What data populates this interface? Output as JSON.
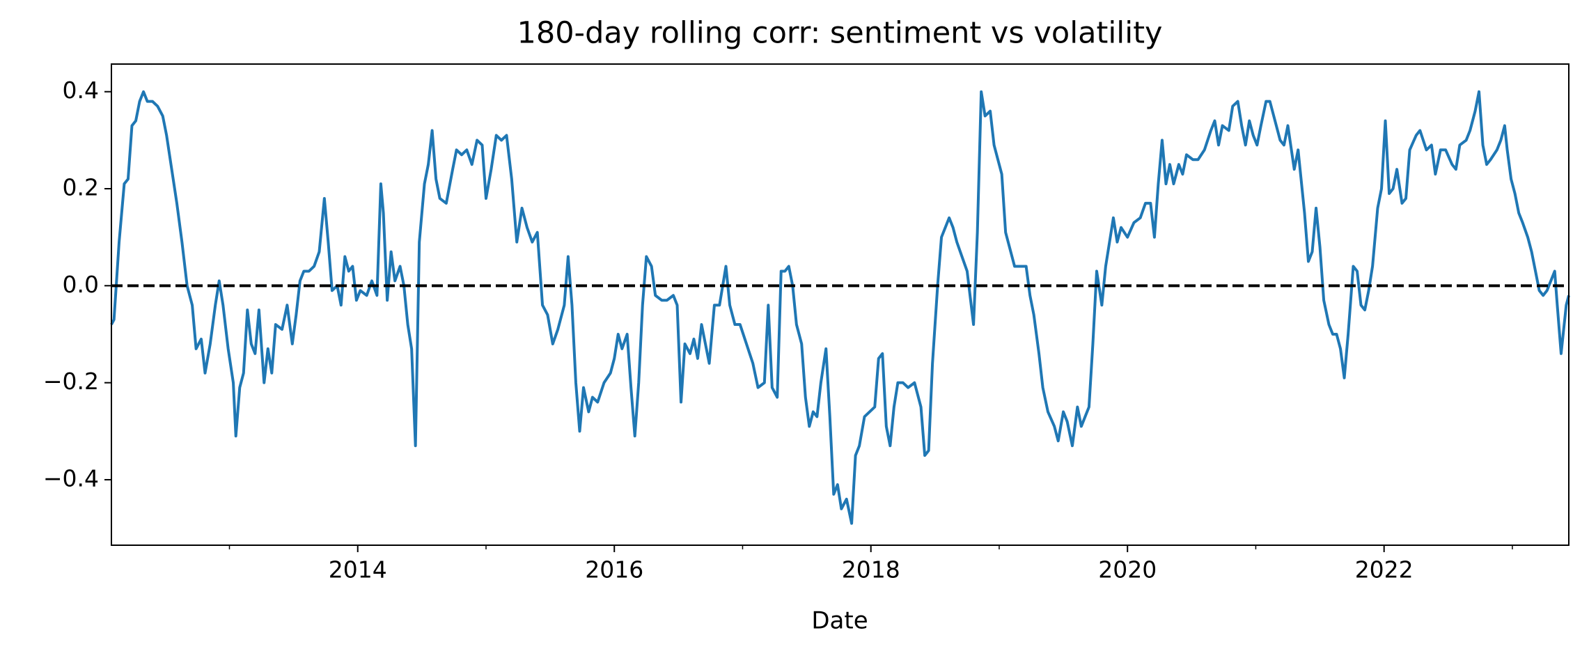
{
  "chart_data": {
    "type": "line",
    "title": "180-day rolling corr: sentiment vs volatility",
    "xlabel": "Date",
    "x": [
      2012.08,
      2012.1,
      2012.14,
      2012.18,
      2012.21,
      2012.24,
      2012.27,
      2012.3,
      2012.33,
      2012.36,
      2012.4,
      2012.44,
      2012.48,
      2012.51,
      2012.55,
      2012.59,
      2012.63,
      2012.67,
      2012.71,
      2012.74,
      2012.78,
      2012.81,
      2012.85,
      2012.89,
      2012.92,
      2012.95,
      2012.99,
      2013.03,
      2013.05,
      2013.08,
      2013.11,
      2013.14,
      2013.17,
      2013.2,
      2013.23,
      2013.27,
      2013.3,
      2013.33,
      2013.36,
      2013.41,
      2013.45,
      2013.49,
      2013.52,
      2013.55,
      2013.58,
      2013.62,
      2013.66,
      2013.7,
      2013.74,
      2013.77,
      2013.8,
      2013.84,
      2013.87,
      2013.9,
      2013.93,
      2013.96,
      2013.99,
      2014.02,
      2014.07,
      2014.11,
      2014.15,
      2014.18,
      2014.2,
      2014.23,
      2014.26,
      2014.29,
      2014.33,
      2014.36,
      2014.39,
      2014.42,
      2014.45,
      2014.48,
      2014.52,
      2014.55,
      2014.58,
      2014.61,
      2014.64,
      2014.69,
      2014.74,
      2014.77,
      2014.81,
      2014.85,
      2014.89,
      2014.93,
      2014.97,
      2015.0,
      2015.04,
      2015.08,
      2015.12,
      2015.16,
      2015.2,
      2015.24,
      2015.28,
      2015.32,
      2015.36,
      2015.4,
      2015.44,
      2015.48,
      2015.52,
      2015.56,
      2015.61,
      2015.64,
      2015.67,
      2015.7,
      2015.73,
      2015.76,
      2015.8,
      2015.83,
      2015.87,
      2015.92,
      2015.97,
      2016.0,
      2016.03,
      2016.06,
      2016.1,
      2016.13,
      2016.16,
      2016.19,
      2016.22,
      2016.25,
      2016.29,
      2016.32,
      2016.37,
      2016.41,
      2016.46,
      2016.49,
      2016.52,
      2016.55,
      2016.59,
      2016.62,
      2016.65,
      2016.68,
      2016.71,
      2016.74,
      2016.78,
      2016.82,
      2016.87,
      2016.9,
      2016.94,
      2016.98,
      2017.03,
      2017.08,
      2017.12,
      2017.17,
      2017.2,
      2017.23,
      2017.27,
      2017.3,
      2017.33,
      2017.36,
      2017.39,
      2017.42,
      2017.46,
      2017.49,
      2017.52,
      2017.55,
      2017.58,
      2017.61,
      2017.65,
      2017.68,
      2017.71,
      2017.74,
      2017.77,
      2017.81,
      2017.85,
      2017.88,
      2017.91,
      2017.95,
      2017.99,
      2018.03,
      2018.06,
      2018.09,
      2018.12,
      2018.15,
      2018.18,
      2018.21,
      2018.25,
      2018.29,
      2018.34,
      2018.39,
      2018.42,
      2018.45,
      2018.48,
      2018.52,
      2018.55,
      2018.58,
      2018.61,
      2018.64,
      2018.67,
      2018.71,
      2018.75,
      2018.8,
      2018.83,
      2018.86,
      2018.89,
      2018.93,
      2018.96,
      2018.99,
      2019.02,
      2019.05,
      2019.08,
      2019.12,
      2019.16,
      2019.21,
      2019.24,
      2019.27,
      2019.31,
      2019.34,
      2019.38,
      2019.43,
      2019.46,
      2019.5,
      2019.53,
      2019.57,
      2019.61,
      2019.64,
      2019.67,
      2019.7,
      2019.73,
      2019.76,
      2019.8,
      2019.83,
      2019.86,
      2019.89,
      2019.92,
      2019.95,
      2020.0,
      2020.05,
      2020.1,
      2020.14,
      2020.18,
      2020.21,
      2020.24,
      2020.27,
      2020.3,
      2020.33,
      2020.36,
      2020.4,
      2020.43,
      2020.46,
      2020.51,
      2020.55,
      2020.6,
      2020.65,
      2020.68,
      2020.71,
      2020.74,
      2020.79,
      2020.82,
      2020.86,
      2020.89,
      2020.92,
      2020.95,
      2020.98,
      2021.01,
      2021.04,
      2021.08,
      2021.11,
      2021.14,
      2021.19,
      2021.22,
      2021.25,
      2021.3,
      2021.33,
      2021.38,
      2021.41,
      2021.44,
      2021.47,
      2021.5,
      2021.53,
      2021.57,
      2021.6,
      2021.63,
      2021.66,
      2021.69,
      2021.72,
      2021.76,
      2021.79,
      2021.82,
      2021.85,
      2021.88,
      2021.91,
      2021.95,
      2021.98,
      2022.01,
      2022.04,
      2022.07,
      2022.1,
      2022.14,
      2022.17,
      2022.2,
      2022.25,
      2022.28,
      2022.33,
      2022.37,
      2022.4,
      2022.44,
      2022.48,
      2022.53,
      2022.56,
      2022.59,
      2022.64,
      2022.67,
      2022.71,
      2022.74,
      2022.77,
      2022.8,
      2022.83,
      2022.88,
      2022.91,
      2022.94,
      2022.96,
      2022.99,
      2023.02,
      2023.05,
      2023.08,
      2023.12,
      2023.15,
      2023.18,
      2023.21,
      2023.24,
      2023.27,
      2023.3,
      2023.33,
      2023.35,
      2023.38,
      2023.42,
      2023.44
    ],
    "values": [
      -0.08,
      -0.07,
      0.09,
      0.21,
      0.22,
      0.33,
      0.34,
      0.38,
      0.4,
      0.38,
      0.38,
      0.37,
      0.35,
      0.31,
      0.24,
      0.17,
      0.09,
      0.0,
      -0.04,
      -0.13,
      -0.11,
      -0.18,
      -0.12,
      -0.04,
      0.01,
      -0.04,
      -0.13,
      -0.2,
      -0.31,
      -0.21,
      -0.18,
      -0.05,
      -0.12,
      -0.14,
      -0.05,
      -0.2,
      -0.13,
      -0.18,
      -0.08,
      -0.09,
      -0.04,
      -0.12,
      -0.06,
      0.01,
      0.03,
      0.03,
      0.04,
      0.07,
      0.18,
      0.09,
      -0.01,
      0.0,
      -0.04,
      0.06,
      0.03,
      0.04,
      -0.03,
      -0.01,
      -0.02,
      0.01,
      -0.02,
      0.21,
      0.15,
      -0.03,
      0.07,
      0.01,
      0.04,
      0.0,
      -0.08,
      -0.13,
      -0.33,
      0.09,
      0.21,
      0.25,
      0.32,
      0.22,
      0.18,
      0.17,
      0.24,
      0.28,
      0.27,
      0.28,
      0.25,
      0.3,
      0.29,
      0.18,
      0.24,
      0.31,
      0.3,
      0.31,
      0.22,
      0.09,
      0.16,
      0.12,
      0.09,
      0.11,
      -0.04,
      -0.06,
      -0.12,
      -0.09,
      -0.04,
      0.06,
      -0.04,
      -0.2,
      -0.3,
      -0.21,
      -0.26,
      -0.23,
      -0.24,
      -0.2,
      -0.18,
      -0.15,
      -0.1,
      -0.13,
      -0.1,
      -0.21,
      -0.31,
      -0.2,
      -0.04,
      0.06,
      0.04,
      -0.02,
      -0.03,
      -0.03,
      -0.02,
      -0.04,
      -0.24,
      -0.12,
      -0.14,
      -0.11,
      -0.15,
      -0.08,
      -0.12,
      -0.16,
      -0.04,
      -0.04,
      0.04,
      -0.04,
      -0.08,
      -0.08,
      -0.12,
      -0.16,
      -0.21,
      -0.2,
      -0.04,
      -0.21,
      -0.23,
      0.03,
      0.03,
      0.04,
      0.0,
      -0.08,
      -0.12,
      -0.23,
      -0.29,
      -0.26,
      -0.27,
      -0.2,
      -0.13,
      -0.27,
      -0.43,
      -0.41,
      -0.46,
      -0.44,
      -0.49,
      -0.35,
      -0.33,
      -0.27,
      -0.26,
      -0.25,
      -0.15,
      -0.14,
      -0.29,
      -0.33,
      -0.25,
      -0.2,
      -0.2,
      -0.21,
      -0.2,
      -0.25,
      -0.35,
      -0.34,
      -0.16,
      0.0,
      0.1,
      0.12,
      0.14,
      0.12,
      0.09,
      0.06,
      0.03,
      -0.08,
      0.11,
      0.4,
      0.35,
      0.36,
      0.29,
      0.26,
      0.23,
      0.11,
      0.08,
      0.04,
      0.04,
      0.04,
      -0.02,
      -0.06,
      -0.14,
      -0.21,
      -0.26,
      -0.29,
      -0.32,
      -0.26,
      -0.28,
      -0.33,
      -0.25,
      -0.29,
      -0.27,
      -0.25,
      -0.12,
      0.03,
      -0.04,
      0.04,
      0.09,
      0.14,
      0.09,
      0.12,
      0.1,
      0.13,
      0.14,
      0.17,
      0.17,
      0.1,
      0.21,
      0.3,
      0.21,
      0.25,
      0.21,
      0.25,
      0.23,
      0.27,
      0.26,
      0.26,
      0.28,
      0.32,
      0.34,
      0.29,
      0.33,
      0.32,
      0.37,
      0.38,
      0.33,
      0.29,
      0.34,
      0.31,
      0.29,
      0.33,
      0.38,
      0.38,
      0.35,
      0.3,
      0.29,
      0.33,
      0.24,
      0.28,
      0.15,
      0.05,
      0.07,
      0.16,
      0.08,
      -0.03,
      -0.08,
      -0.1,
      -0.1,
      -0.13,
      -0.19,
      -0.1,
      0.04,
      0.03,
      -0.04,
      -0.05,
      -0.01,
      0.04,
      0.16,
      0.2,
      0.34,
      0.19,
      0.2,
      0.24,
      0.17,
      0.18,
      0.28,
      0.31,
      0.32,
      0.28,
      0.29,
      0.23,
      0.28,
      0.28,
      0.25,
      0.24,
      0.29,
      0.3,
      0.32,
      0.36,
      0.4,
      0.29,
      0.25,
      0.26,
      0.28,
      0.3,
      0.33,
      0.28,
      0.22,
      0.19,
      0.15,
      0.13,
      0.1,
      0.07,
      0.03,
      -0.01,
      -0.02,
      -0.01,
      0.01,
      0.03,
      -0.04,
      -0.14,
      -0.04,
      -0.02
    ],
    "color": "#1f77b4",
    "xlim": [
      2012.08,
      2023.44
    ],
    "xticks": [
      2014,
      2016,
      2018,
      2020,
      2022
    ],
    "xminorticks": [
      2013,
      2015,
      2017,
      2019,
      2021,
      2023
    ],
    "ylim": [
      -0.535,
      0.457
    ],
    "yticks": [
      {
        "value": -0.4,
        "label": "−0.4"
      },
      {
        "value": -0.2,
        "label": "−0.2"
      },
      {
        "value": 0,
        "label": "0.0"
      },
      0.2,
      0.4
    ],
    "hline": {
      "value": 0,
      "color": "#000000",
      "style": "dashed"
    }
  }
}
